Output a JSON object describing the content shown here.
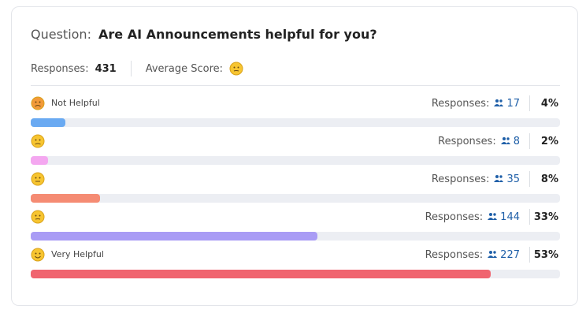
{
  "question_label": "Question:",
  "question": "Are AI Announcements helpful for you?",
  "summary": {
    "responses_label": "Responses:",
    "responses": 431,
    "average_label": "Average Score:"
  },
  "rows": [
    {
      "label": "Not Helpful",
      "responses_label": "Responses:",
      "responses": 17,
      "percent": 4,
      "percent_label": "4%",
      "color": "#6aaaf2"
    },
    {
      "responses_label": "Responses:",
      "responses": 8,
      "percent": 2,
      "percent_label": "2%",
      "color": "#f4a7f0"
    },
    {
      "responses_label": "Responses:",
      "responses": 35,
      "percent": 8,
      "percent_label": "8%",
      "color": "#f58b73"
    },
    {
      "responses_label": "Responses:",
      "responses": 144,
      "percent": 33,
      "percent_label": "33%",
      "color": "#a99cf5"
    },
    {
      "label": "Very Helpful",
      "responses_label": "Responses:",
      "responses": 227,
      "percent": 53,
      "percent_label": "53%",
      "color": "#f0646f"
    }
  ]
}
